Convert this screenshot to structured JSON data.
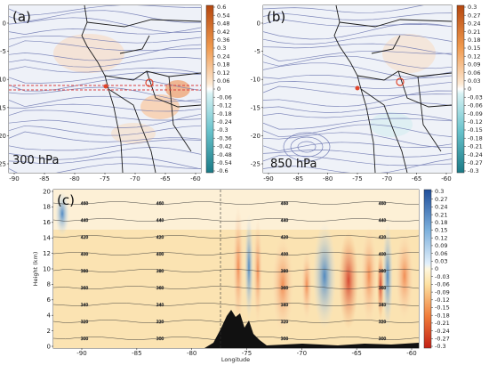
{
  "panels": {
    "a": {
      "tag": "(a)",
      "level": "300 hPa",
      "x_ticks": [
        "-90",
        "-85",
        "-80",
        "-75",
        "-70",
        "-65",
        "-60"
      ],
      "y_ticks": [
        "0",
        "-5",
        "-10",
        "-15",
        "-20",
        "-25"
      ],
      "colorbar": [
        "0.6",
        "0.54",
        "0.48",
        "0.42",
        "0.36",
        "0.3",
        "0.24",
        "0.18",
        "0.12",
        "0.06",
        "0",
        "-0.06",
        "-0.12",
        "-0.18",
        "-0.24",
        "-0.3",
        "-0.36",
        "-0.42",
        "-0.48",
        "-0.54",
        "-0.6"
      ]
    },
    "b": {
      "tag": "(b)",
      "level": "850 hPa",
      "x_ticks": [
        "-90",
        "-85",
        "-80",
        "-75",
        "-70",
        "-65",
        "-60"
      ],
      "y_ticks": [
        "0",
        "-5",
        "-10",
        "-15",
        "-20",
        "-25"
      ],
      "colorbar": [
        "0.3",
        "0.27",
        "0.24",
        "0.21",
        "0.18",
        "0.15",
        "0.12",
        "0.09",
        "0.06",
        "0.03",
        "0",
        "-0.03",
        "-0.06",
        "-0.09",
        "-0.12",
        "-0.15",
        "-0.18",
        "-0.21",
        "-0.24",
        "-0.27",
        "-0.3"
      ]
    },
    "c": {
      "tag": "(c)",
      "xlabel": "Longitude",
      "ylabel": "Height (km)",
      "x_ticks": [
        "-90",
        "-85",
        "-80",
        "-75",
        "-70",
        "-65",
        "-60"
      ],
      "y_ticks": [
        "20",
        "18",
        "16",
        "14",
        "12",
        "10",
        "8",
        "6",
        "4",
        "2",
        "0"
      ],
      "colorbar": [
        "0.3",
        "0.27",
        "0.24",
        "0.21",
        "0.18",
        "0.15",
        "0.12",
        "0.09",
        "0.06",
        "0.03",
        "0",
        "-0.03",
        "-0.06",
        "-0.09",
        "-0.12",
        "-0.15",
        "-0.18",
        "-0.21",
        "-0.24",
        "-0.27",
        "-0.3"
      ],
      "contour_labels": [
        "460",
        "440",
        "420",
        "400",
        "380",
        "360",
        "340",
        "320",
        "300"
      ]
    }
  },
  "colors": {
    "positive": "#e3722a",
    "negative": "#2f78b4",
    "streamline": "#6b75b0",
    "land": "#222222",
    "marker": "#e0452c"
  }
}
